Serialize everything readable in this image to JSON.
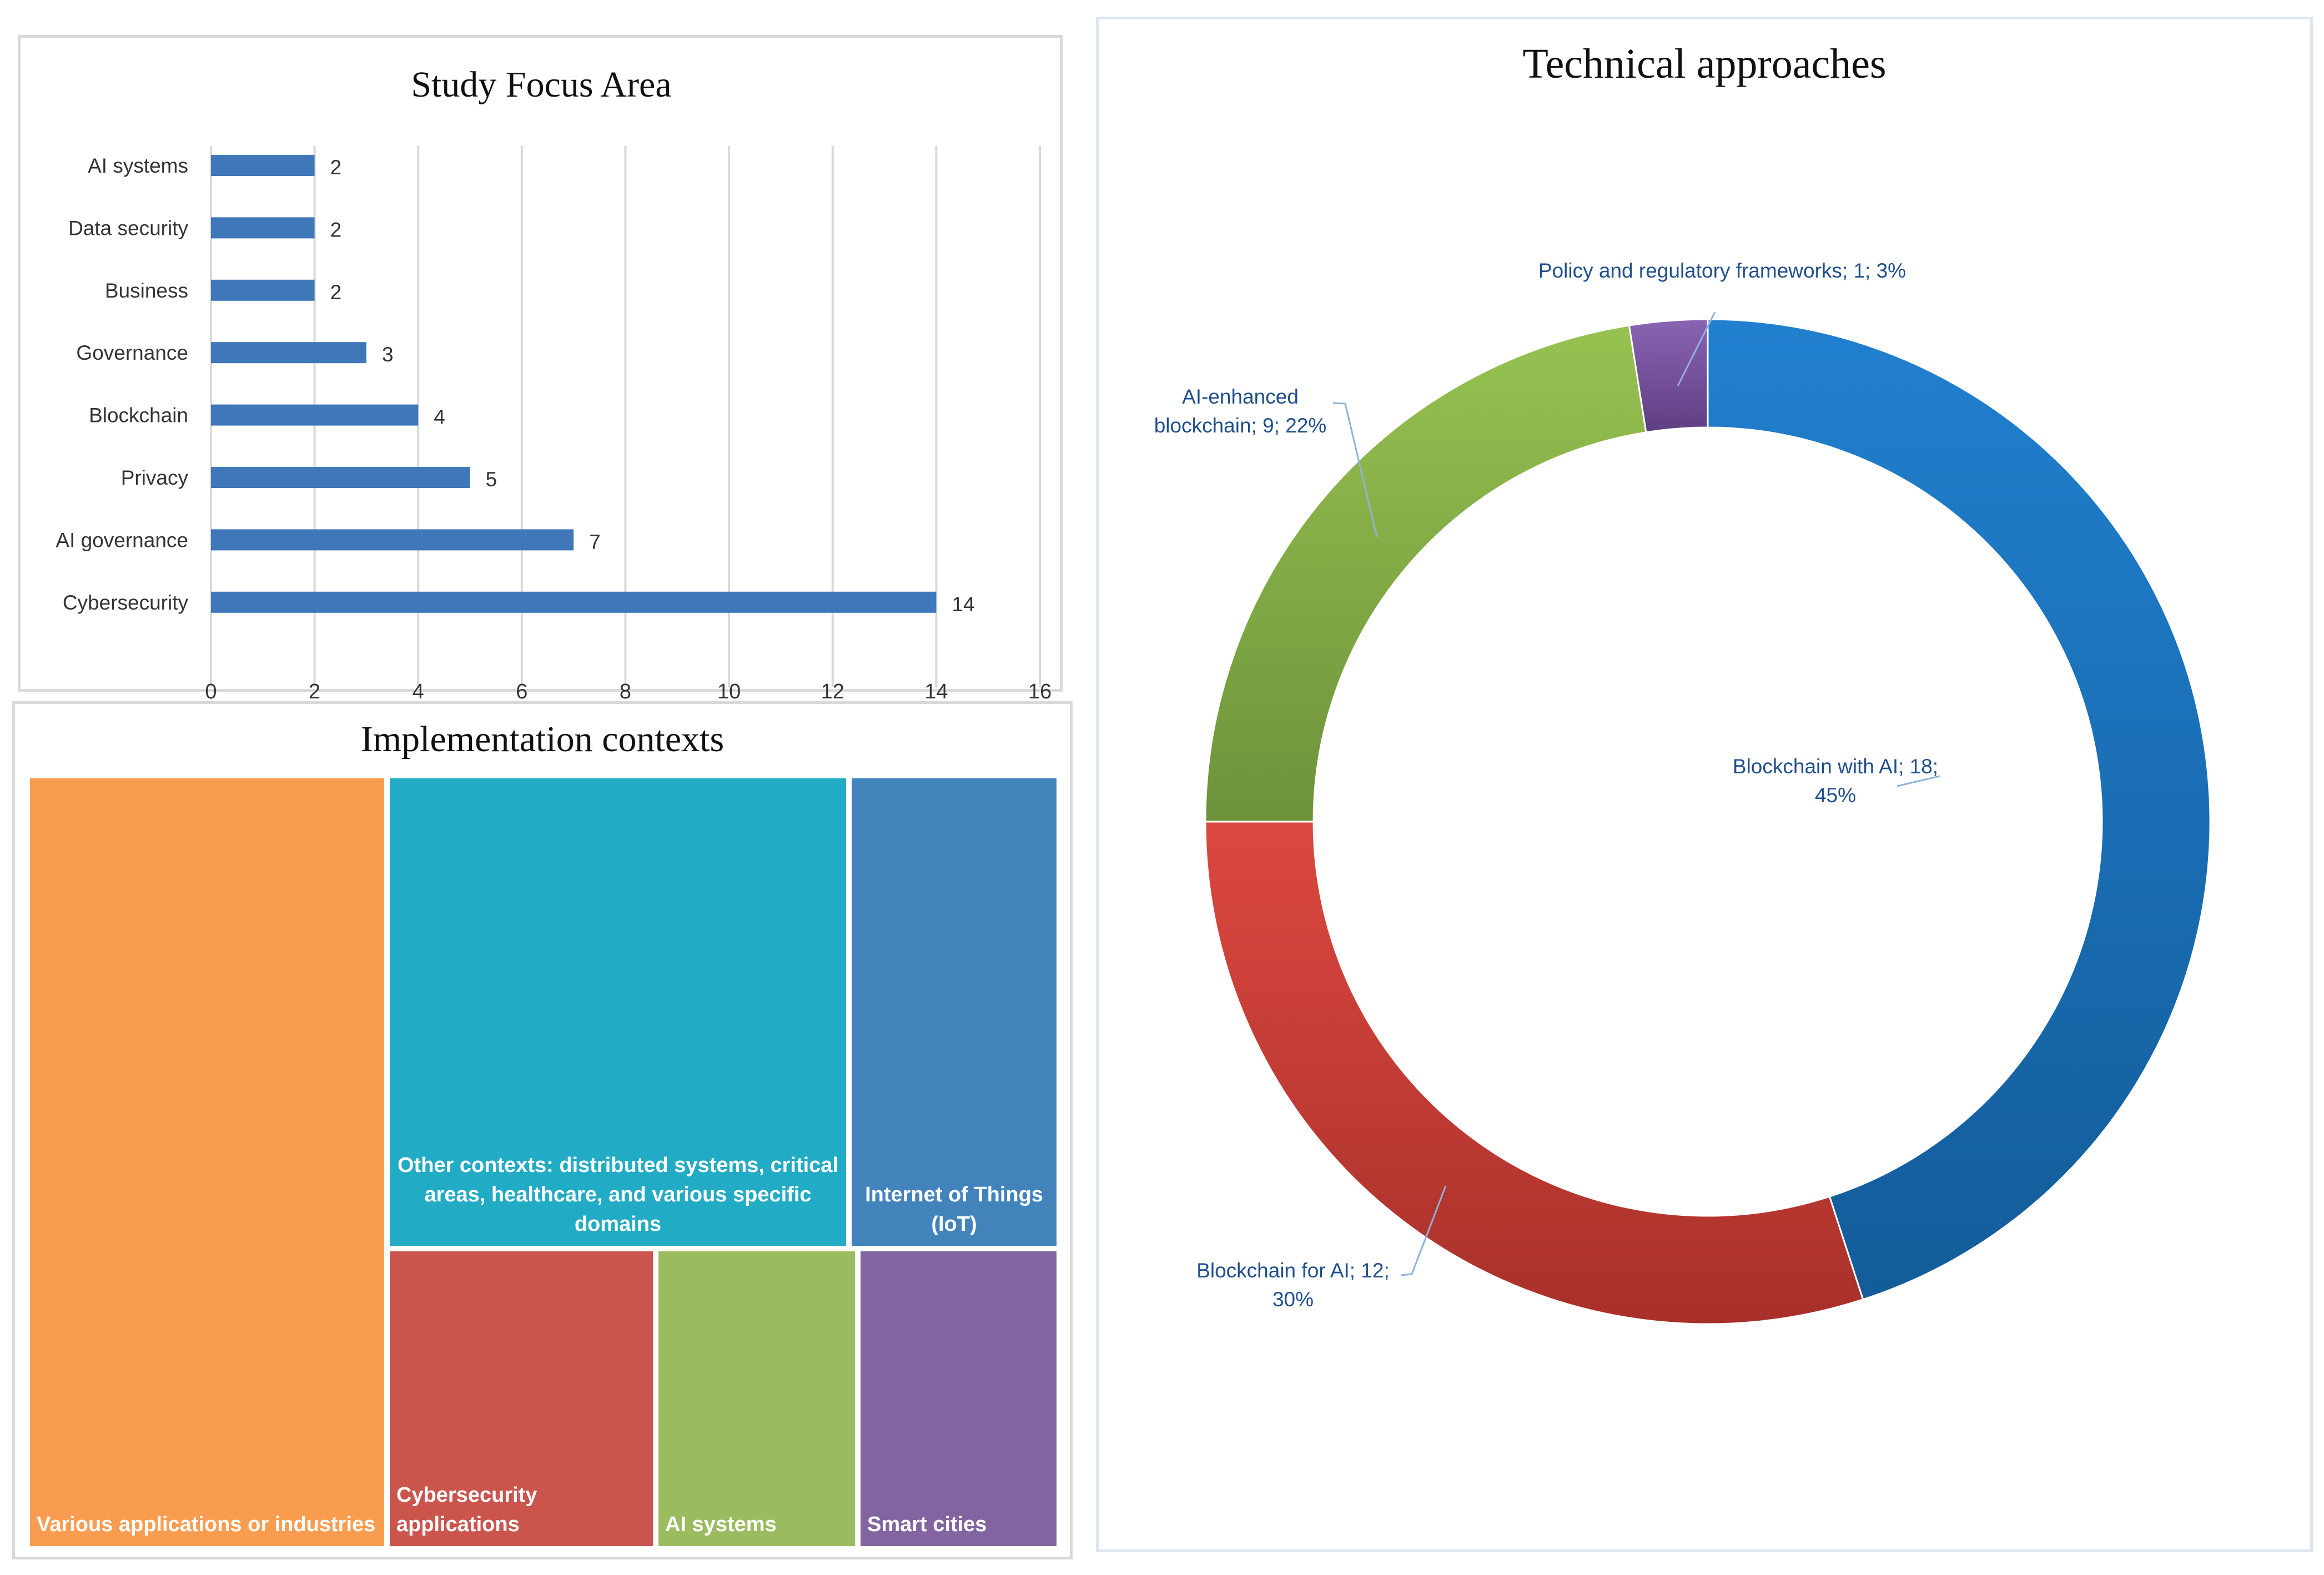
{
  "chart_data": [
    {
      "type": "bar",
      "orientation": "horizontal",
      "title": "Study Focus Area",
      "categories": [
        "AI systems",
        "Data security",
        "Business",
        "Governance",
        "Blockchain",
        "Privacy",
        "AI governance",
        "Cybersecurity"
      ],
      "values": [
        2,
        2,
        2,
        3,
        4,
        5,
        7,
        14
      ],
      "value_labels": [
        "2",
        "2",
        "2",
        "3",
        "4",
        "5",
        "7",
        "14"
      ],
      "xlim": [
        0,
        16
      ],
      "xticks": [
        "0",
        "2",
        "4",
        "6",
        "8",
        "10",
        "12",
        "14",
        "16"
      ],
      "grid": "vertical",
      "color": "#4077b8"
    },
    {
      "type": "treemap",
      "title": "Implementation contexts",
      "items": [
        {
          "label": "Various applications or industries",
          "color": "#fa9c4f"
        },
        {
          "label": "Other contexts: distributed systems, critical areas, healthcare, and various specific domains",
          "lines": [
            "Other contexts: distributed systems, critical",
            "areas, healthcare, and various specific",
            "domains"
          ],
          "color": "#22abc4"
        },
        {
          "label": "Internet of Things (IoT)",
          "lines": [
            "Internet of Things",
            "(IoT)"
          ],
          "color": "#4383bc"
        },
        {
          "label": "Cybersecurity applications",
          "lines": [
            "Cybersecurity",
            "applications"
          ],
          "color": "#cb554d"
        },
        {
          "label": "AI systems",
          "color": "#9bbb5f"
        },
        {
          "label": "Smart cities",
          "color": "#8264a0"
        }
      ]
    },
    {
      "type": "pie",
      "variant": "donut",
      "title": "Technical approaches",
      "slices": [
        {
          "label": "Blockchain with AI",
          "value": 18,
          "percent": 45,
          "color": "#1f6fbd",
          "text_lines": [
            "Blockchain with AI; 18;",
            "45%"
          ]
        },
        {
          "label": "Blockchain for AI",
          "value": 12,
          "percent": 30,
          "color": "#cf3d33",
          "text_lines": [
            "Blockchain for AI; 12;",
            "30%"
          ]
        },
        {
          "label": "AI-enhanced blockchain",
          "value": 9,
          "percent": 22,
          "color": "#86ae47",
          "text_lines": [
            "AI-enhanced",
            "blockchain; 9; 22%"
          ]
        },
        {
          "label": "Policy and regulatory frameworks",
          "value": 1,
          "percent": 3,
          "color": "#76519a",
          "text_lines": [
            "Policy and regulatory frameworks; 1; 3%"
          ]
        }
      ]
    }
  ]
}
